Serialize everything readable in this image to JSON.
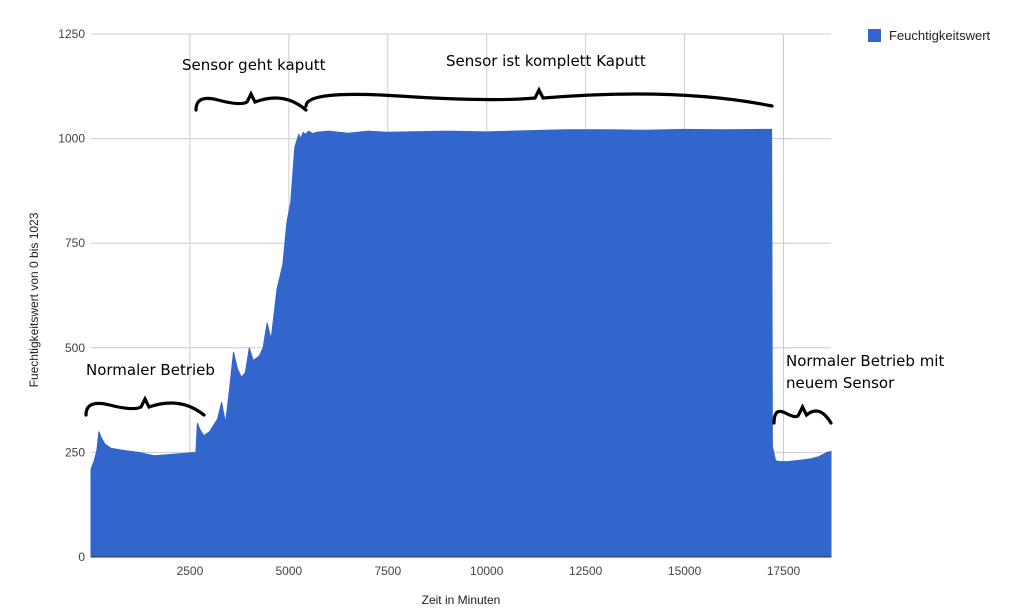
{
  "chart_data": {
    "type": "area",
    "xlabel": "Zeit in Minuten",
    "ylabel": "Fuechtigkeitswert von 0 bis 1023",
    "xlim": [
      0,
      18700
    ],
    "ylim": [
      0,
      1250
    ],
    "x_ticks": [
      2500,
      5000,
      7500,
      10000,
      12500,
      15000,
      17500
    ],
    "y_ticks": [
      0,
      250,
      500,
      750,
      1000,
      1250
    ],
    "grid": true,
    "legend_position": "top-right",
    "series": [
      {
        "name": "Feuchtigkeitswert",
        "color": "#3366cc",
        "x": [
          0,
          80,
          150,
          200,
          260,
          350,
          500,
          800,
          1200,
          1600,
          2000,
          2400,
          2650,
          2690,
          2750,
          2850,
          3000,
          3200,
          3300,
          3400,
          3500,
          3600,
          3700,
          3800,
          3900,
          4000,
          4100,
          4250,
          4350,
          4450,
          4550,
          4700,
          4850,
          4950,
          5050,
          5150,
          5250,
          5300,
          5360,
          5420,
          5500,
          5600,
          5700,
          6000,
          6500,
          7000,
          7500,
          8000,
          9000,
          10000,
          11000,
          12000,
          13000,
          14000,
          15000,
          16000,
          17000,
          17200,
          17220,
          17300,
          17400,
          17600,
          17800,
          18000,
          18200,
          18400,
          18600,
          18700
        ],
        "y": [
          210,
          230,
          255,
          300,
          285,
          270,
          260,
          255,
          250,
          242,
          245,
          248,
          250,
          320,
          305,
          290,
          300,
          330,
          370,
          320,
          400,
          490,
          450,
          430,
          440,
          500,
          470,
          480,
          500,
          560,
          520,
          640,
          700,
          800,
          850,
          980,
          1010,
          1000,
          1015,
          1010,
          1018,
          1012,
          1015,
          1018,
          1013,
          1018,
          1015,
          1016,
          1018,
          1016,
          1019,
          1021,
          1021,
          1020,
          1022,
          1021,
          1022,
          1022,
          265,
          230,
          228,
          228,
          230,
          232,
          235,
          240,
          250,
          252
        ]
      }
    ],
    "annotations": [
      {
        "label": "Normaler Betrieb",
        "x_start": 0,
        "x_end": 2850
      },
      {
        "label": "Sensor geht kaputt",
        "x_start": 2650,
        "x_end": 5400
      },
      {
        "label": "Sensor ist komplett Kaputt",
        "x_start": 5500,
        "x_end": 17200
      },
      {
        "label": "Normaler Betrieb mit neuem Sensor",
        "x_start": 17250,
        "x_end": 18700
      }
    ]
  }
}
